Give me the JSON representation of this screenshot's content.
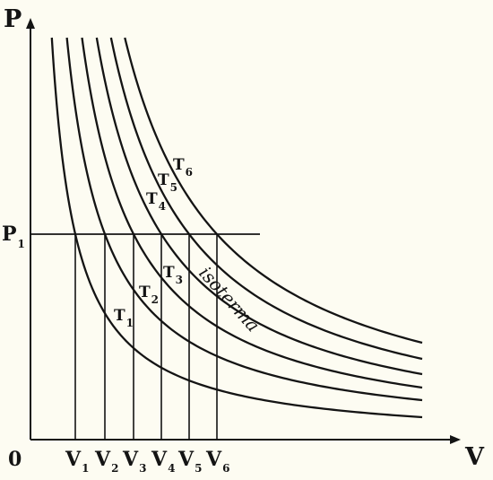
{
  "axes": {
    "y_label": "P",
    "x_label": "V",
    "origin_label": "0"
  },
  "pressure_line": {
    "label": "P",
    "sub": "1"
  },
  "volumes": [
    {
      "label": "V",
      "sub": "1"
    },
    {
      "label": "V",
      "sub": "2"
    },
    {
      "label": "V",
      "sub": "3"
    },
    {
      "label": "V",
      "sub": "4"
    },
    {
      "label": "V",
      "sub": "5"
    },
    {
      "label": "V",
      "sub": "6"
    }
  ],
  "curves": [
    {
      "label": "T",
      "sub": "1"
    },
    {
      "label": "T",
      "sub": "2"
    },
    {
      "label": "T",
      "sub": "3"
    },
    {
      "label": "T",
      "sub": "4"
    },
    {
      "label": "T",
      "sub": "5"
    },
    {
      "label": "T",
      "sub": "6"
    }
  ],
  "curve_caption": "isoterma",
  "colors": {
    "ink": "#141414",
    "background": "#fdfcf2"
  }
}
